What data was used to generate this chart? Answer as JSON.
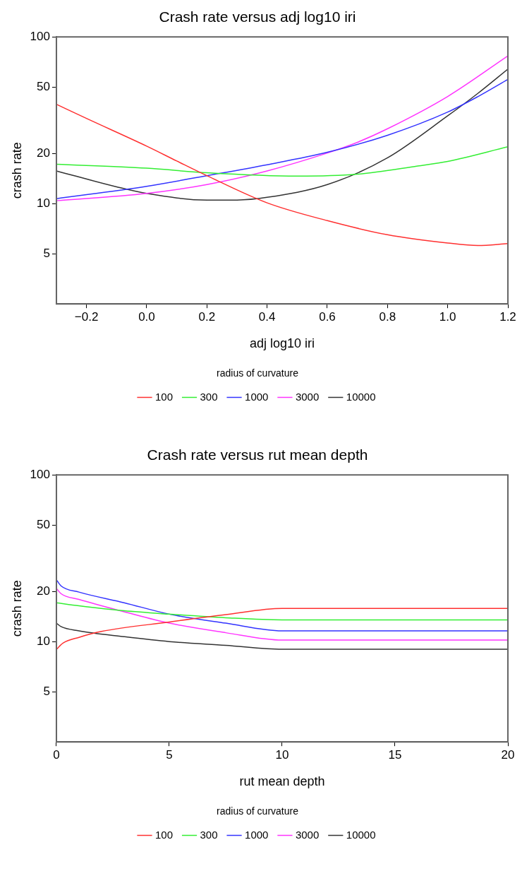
{
  "chart_data": [
    {
      "type": "line",
      "title": "Crash rate versus adj log10 iri",
      "xlabel": "adj log10 iri",
      "ylabel": "crash rate",
      "legend_title": "radius of curvature",
      "legend": "bottom",
      "log": "y",
      "marker": "none",
      "line_style": "solid",
      "grid": false,
      "xlim": [
        -0.3,
        1.2
      ],
      "xticks": [
        {
          "value": -0.2,
          "label": "−0.2"
        },
        {
          "value": 0,
          "label": "0.0"
        },
        {
          "value": 0.2,
          "label": "0.2"
        },
        {
          "value": 0.4,
          "label": "0.4"
        },
        {
          "value": 0.6,
          "label": "0.6"
        },
        {
          "value": 0.8,
          "label": "0.8"
        },
        {
          "value": 1,
          "label": "1.0"
        },
        {
          "value": 1.2,
          "label": "1.2"
        }
      ],
      "ylim": [
        2.5,
        100
      ],
      "yticks": [
        5,
        10,
        20,
        50,
        100
      ],
      "series": [
        {
          "name": "100",
          "color": "#ff3030",
          "x": [
            -0.3,
            -0.2,
            0,
            0.1,
            0.2,
            0.4,
            0.6,
            0.8,
            1,
            1.1,
            1.2
          ],
          "values": [
            39.4,
            32.4,
            22.1,
            18,
            14.7,
            10.1,
            7.9,
            6.5,
            5.8,
            5.6,
            5.75
          ]
        },
        {
          "name": "300",
          "color": "#33ee33",
          "x": [
            -0.3,
            0,
            0.2,
            0.5,
            0.7,
            0.9,
            1,
            1.2
          ],
          "values": [
            17.2,
            16.3,
            15.3,
            14.6,
            15,
            16.8,
            17.9,
            21.9
          ]
        },
        {
          "name": "1000",
          "color": "#3333ff",
          "x": [
            -0.3,
            0,
            0.2,
            0.4,
            0.6,
            0.8,
            1,
            1.1,
            1.2
          ],
          "values": [
            10.7,
            12.7,
            14.7,
            17.1,
            20.3,
            25.7,
            35.4,
            43.8,
            55.6
          ]
        },
        {
          "name": "3000",
          "color": "#ff33ff",
          "x": [
            -0.3,
            0,
            0.2,
            0.4,
            0.6,
            0.7,
            0.8,
            1,
            1.2
          ],
          "values": [
            10.4,
            11.5,
            13,
            15.7,
            20.1,
            23.3,
            28.1,
            43.9,
            76.9
          ]
        },
        {
          "name": "10000",
          "color": "#333333",
          "x": [
            -0.3,
            -0.1,
            0,
            0.2,
            0.3,
            0.4,
            0.6,
            0.8,
            1,
            1.1,
            1.2
          ],
          "values": [
            15.7,
            12.6,
            11.5,
            10.5,
            10.5,
            10.9,
            13,
            18.8,
            33.6,
            45.8,
            64.1
          ]
        }
      ]
    },
    {
      "type": "line",
      "title": "Crash rate versus rut mean depth",
      "xlabel": "rut mean depth",
      "ylabel": "crash rate",
      "legend_title": "radius of curvature",
      "legend": "bottom",
      "log": "y",
      "marker": "none",
      "line_style": "solid",
      "grid": false,
      "xlim": [
        0,
        20
      ],
      "xticks": [
        0,
        5,
        10,
        15,
        20
      ],
      "ylim": [
        2.5,
        100
      ],
      "yticks": [
        5,
        10,
        20,
        50,
        100
      ],
      "series": [
        {
          "name": "100",
          "color": "#ff3030",
          "x": [
            0,
            0.3,
            1,
            2,
            5,
            7.5,
            10,
            20
          ],
          "values": [
            8.98,
            9.8,
            10.6,
            11.5,
            13.1,
            14.5,
            15.8,
            15.8
          ]
        },
        {
          "name": "300",
          "color": "#33ee33",
          "x": [
            0,
            1,
            3,
            5,
            7.5,
            10,
            20
          ],
          "values": [
            17.1,
            16.4,
            15.3,
            14.6,
            13.9,
            13.5,
            13.5
          ]
        },
        {
          "name": "1000",
          "color": "#3333ff",
          "x": [
            0,
            0.2,
            1,
            3,
            5,
            7.5,
            10,
            20
          ],
          "values": [
            23.5,
            21.6,
            19.8,
            17.1,
            14.6,
            12.9,
            11.6,
            11.6
          ]
        },
        {
          "name": "3000",
          "color": "#ff33ff",
          "x": [
            0,
            0.2,
            1,
            3,
            5,
            7.5,
            10,
            20
          ],
          "values": [
            20.9,
            19.4,
            17.9,
            15.1,
            12.9,
            11.3,
            10.2,
            10.2
          ]
        },
        {
          "name": "10000",
          "color": "#333333",
          "x": [
            0,
            0.2,
            1,
            3,
            5,
            7.5,
            10,
            20
          ],
          "values": [
            12.9,
            12.3,
            11.6,
            10.7,
            10,
            9.5,
            9,
            9
          ]
        }
      ]
    }
  ]
}
